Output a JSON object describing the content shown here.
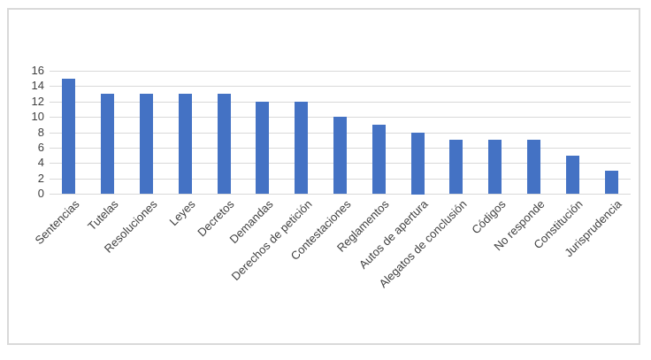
{
  "chart": {
    "background_color": "#ffffff",
    "frame_border_color": "#d9d9d9",
    "bar_color": "#4472c4",
    "gridline_color": "#d9d9d9",
    "axis_text_color": "#3f3f3f"
  },
  "chart_data": {
    "type": "bar",
    "title": "",
    "xlabel": "",
    "ylabel": "",
    "categories": [
      "Sentencias",
      "Tutelas",
      "Resoluciones",
      "Leyes",
      "Decretos",
      "Demandas",
      "Derechos de petición",
      "Contestaciones",
      "Reglamentos",
      "Autos de apertura",
      "Alegatos de conclusión",
      "Códigos",
      "No responde",
      "Constitución",
      "Jurisprudencia"
    ],
    "values": [
      15,
      13,
      13,
      13,
      13,
      12,
      12,
      10,
      9,
      8,
      7,
      7,
      7,
      5,
      3
    ],
    "ylim": [
      0,
      16
    ],
    "yticks": [
      0,
      2,
      4,
      6,
      8,
      10,
      12,
      14,
      16
    ],
    "grid": true,
    "legend": false,
    "x_label_rotation_deg": 45
  }
}
